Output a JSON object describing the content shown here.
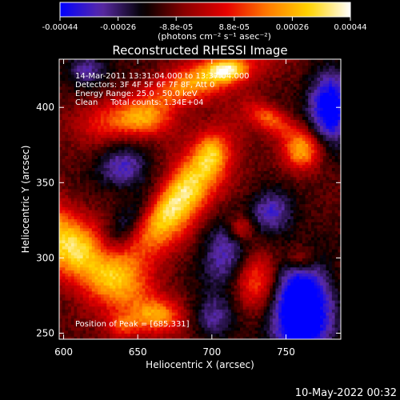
{
  "colorbar": {
    "ticks": [
      "-0.00044",
      "-0.00026",
      "-8.8e-05",
      "8.8e-05",
      "0.00026",
      "0.00044"
    ],
    "units": "(photons cm⁻² s⁻¹ asec⁻²)"
  },
  "title": "Reconstructed RHESSI Image",
  "annotations": {
    "time": "14-Mar-2011 13:31:04.000 to 13:37:04.000",
    "detectors": "Detectors: 3F 4F 5F 6F 7F 8F, Att 0",
    "energy": "Energy Range: 25.0 - 50.0 keV",
    "clean": "Clean     Total counts: 1.34E+04",
    "peak": "Position of Peak = [685,331]"
  },
  "footer": {
    "timestamp": "10-May-2022 00:32"
  },
  "chart_data": {
    "type": "heatmap",
    "title": "Reconstructed RHESSI Image",
    "xlabel": "Heliocentric X (arcsec)",
    "ylabel": "Heliocentric Y (arcsec)",
    "xlim": [
      597,
      787
    ],
    "ylim": [
      246,
      432
    ],
    "x_ticks": [
      600,
      650,
      700,
      750
    ],
    "y_ticks": [
      250,
      300,
      350,
      400
    ],
    "colorbar_range": [
      -0.00044,
      0.00044
    ],
    "colormap": [
      "#0000ff",
      "#5a2aa6",
      "#000000",
      "#8a0000",
      "#e60000",
      "#ff7a00",
      "#ffd400",
      "#ffffff"
    ],
    "peak": [
      685,
      331
    ],
    "sources": [
      {
        "x": 676,
        "y": 340,
        "sx": 13,
        "sy": 32,
        "theta": -40,
        "amp": 1.15
      },
      {
        "x": 612,
        "y": 302,
        "sx": 14,
        "sy": 40,
        "theta": 52,
        "amp": 1.0
      },
      {
        "x": 692,
        "y": 418,
        "sx": 30,
        "sy": 9,
        "theta": 20,
        "amp": 0.75
      },
      {
        "x": 655,
        "y": 392,
        "sx": 14,
        "sy": 8,
        "theta": 0,
        "amp": 0.6
      },
      {
        "x": 761,
        "y": 372,
        "sx": 9,
        "sy": 9,
        "theta": 0,
        "amp": 0.75
      },
      {
        "x": 740,
        "y": 392,
        "sx": 12,
        "sy": 6,
        "theta": -30,
        "amp": 0.55
      },
      {
        "x": 730,
        "y": 285,
        "sx": 11,
        "sy": 14,
        "theta": 0,
        "amp": 0.6
      },
      {
        "x": 720,
        "y": 320,
        "sx": 6,
        "sy": 6,
        "theta": 0,
        "amp": 0.45
      },
      {
        "x": 663,
        "y": 262,
        "sx": 11,
        "sy": 7,
        "theta": 0,
        "amp": 0.5
      },
      {
        "x": 640,
        "y": 255,
        "sx": 8,
        "sy": 6,
        "theta": 0,
        "amp": 0.4
      },
      {
        "x": 625,
        "y": 390,
        "sx": 15,
        "sy": 10,
        "theta": 0,
        "amp": 0.35
      },
      {
        "x": 700,
        "y": 370,
        "sx": 7,
        "sy": 9,
        "theta": 0,
        "amp": 0.4
      },
      {
        "x": 760,
        "y": 300,
        "sx": 7,
        "sy": 6,
        "theta": 0,
        "amp": 0.35
      },
      {
        "x": 710,
        "y": 425,
        "sx": 9,
        "sy": 5,
        "theta": 0,
        "amp": 0.6
      }
    ],
    "negatives": [
      {
        "x": 760,
        "y": 265,
        "sx": 14,
        "sy": 22,
        "theta": 0,
        "amp": 1.05
      },
      {
        "x": 780,
        "y": 400,
        "sx": 10,
        "sy": 16,
        "theta": 0,
        "amp": 0.8
      },
      {
        "x": 650,
        "y": 330,
        "sx": 8,
        "sy": 30,
        "theta": -40,
        "amp": 0.55
      },
      {
        "x": 640,
        "y": 360,
        "sx": 12,
        "sy": 10,
        "theta": 0,
        "amp": 0.45
      },
      {
        "x": 710,
        "y": 300,
        "sx": 12,
        "sy": 18,
        "theta": 0,
        "amp": 0.45
      },
      {
        "x": 740,
        "y": 330,
        "sx": 10,
        "sy": 10,
        "theta": 0,
        "amp": 0.45
      },
      {
        "x": 615,
        "y": 425,
        "sx": 10,
        "sy": 8,
        "theta": 0,
        "amp": 0.4
      },
      {
        "x": 700,
        "y": 260,
        "sx": 10,
        "sy": 10,
        "theta": 0,
        "amp": 0.35
      }
    ]
  }
}
